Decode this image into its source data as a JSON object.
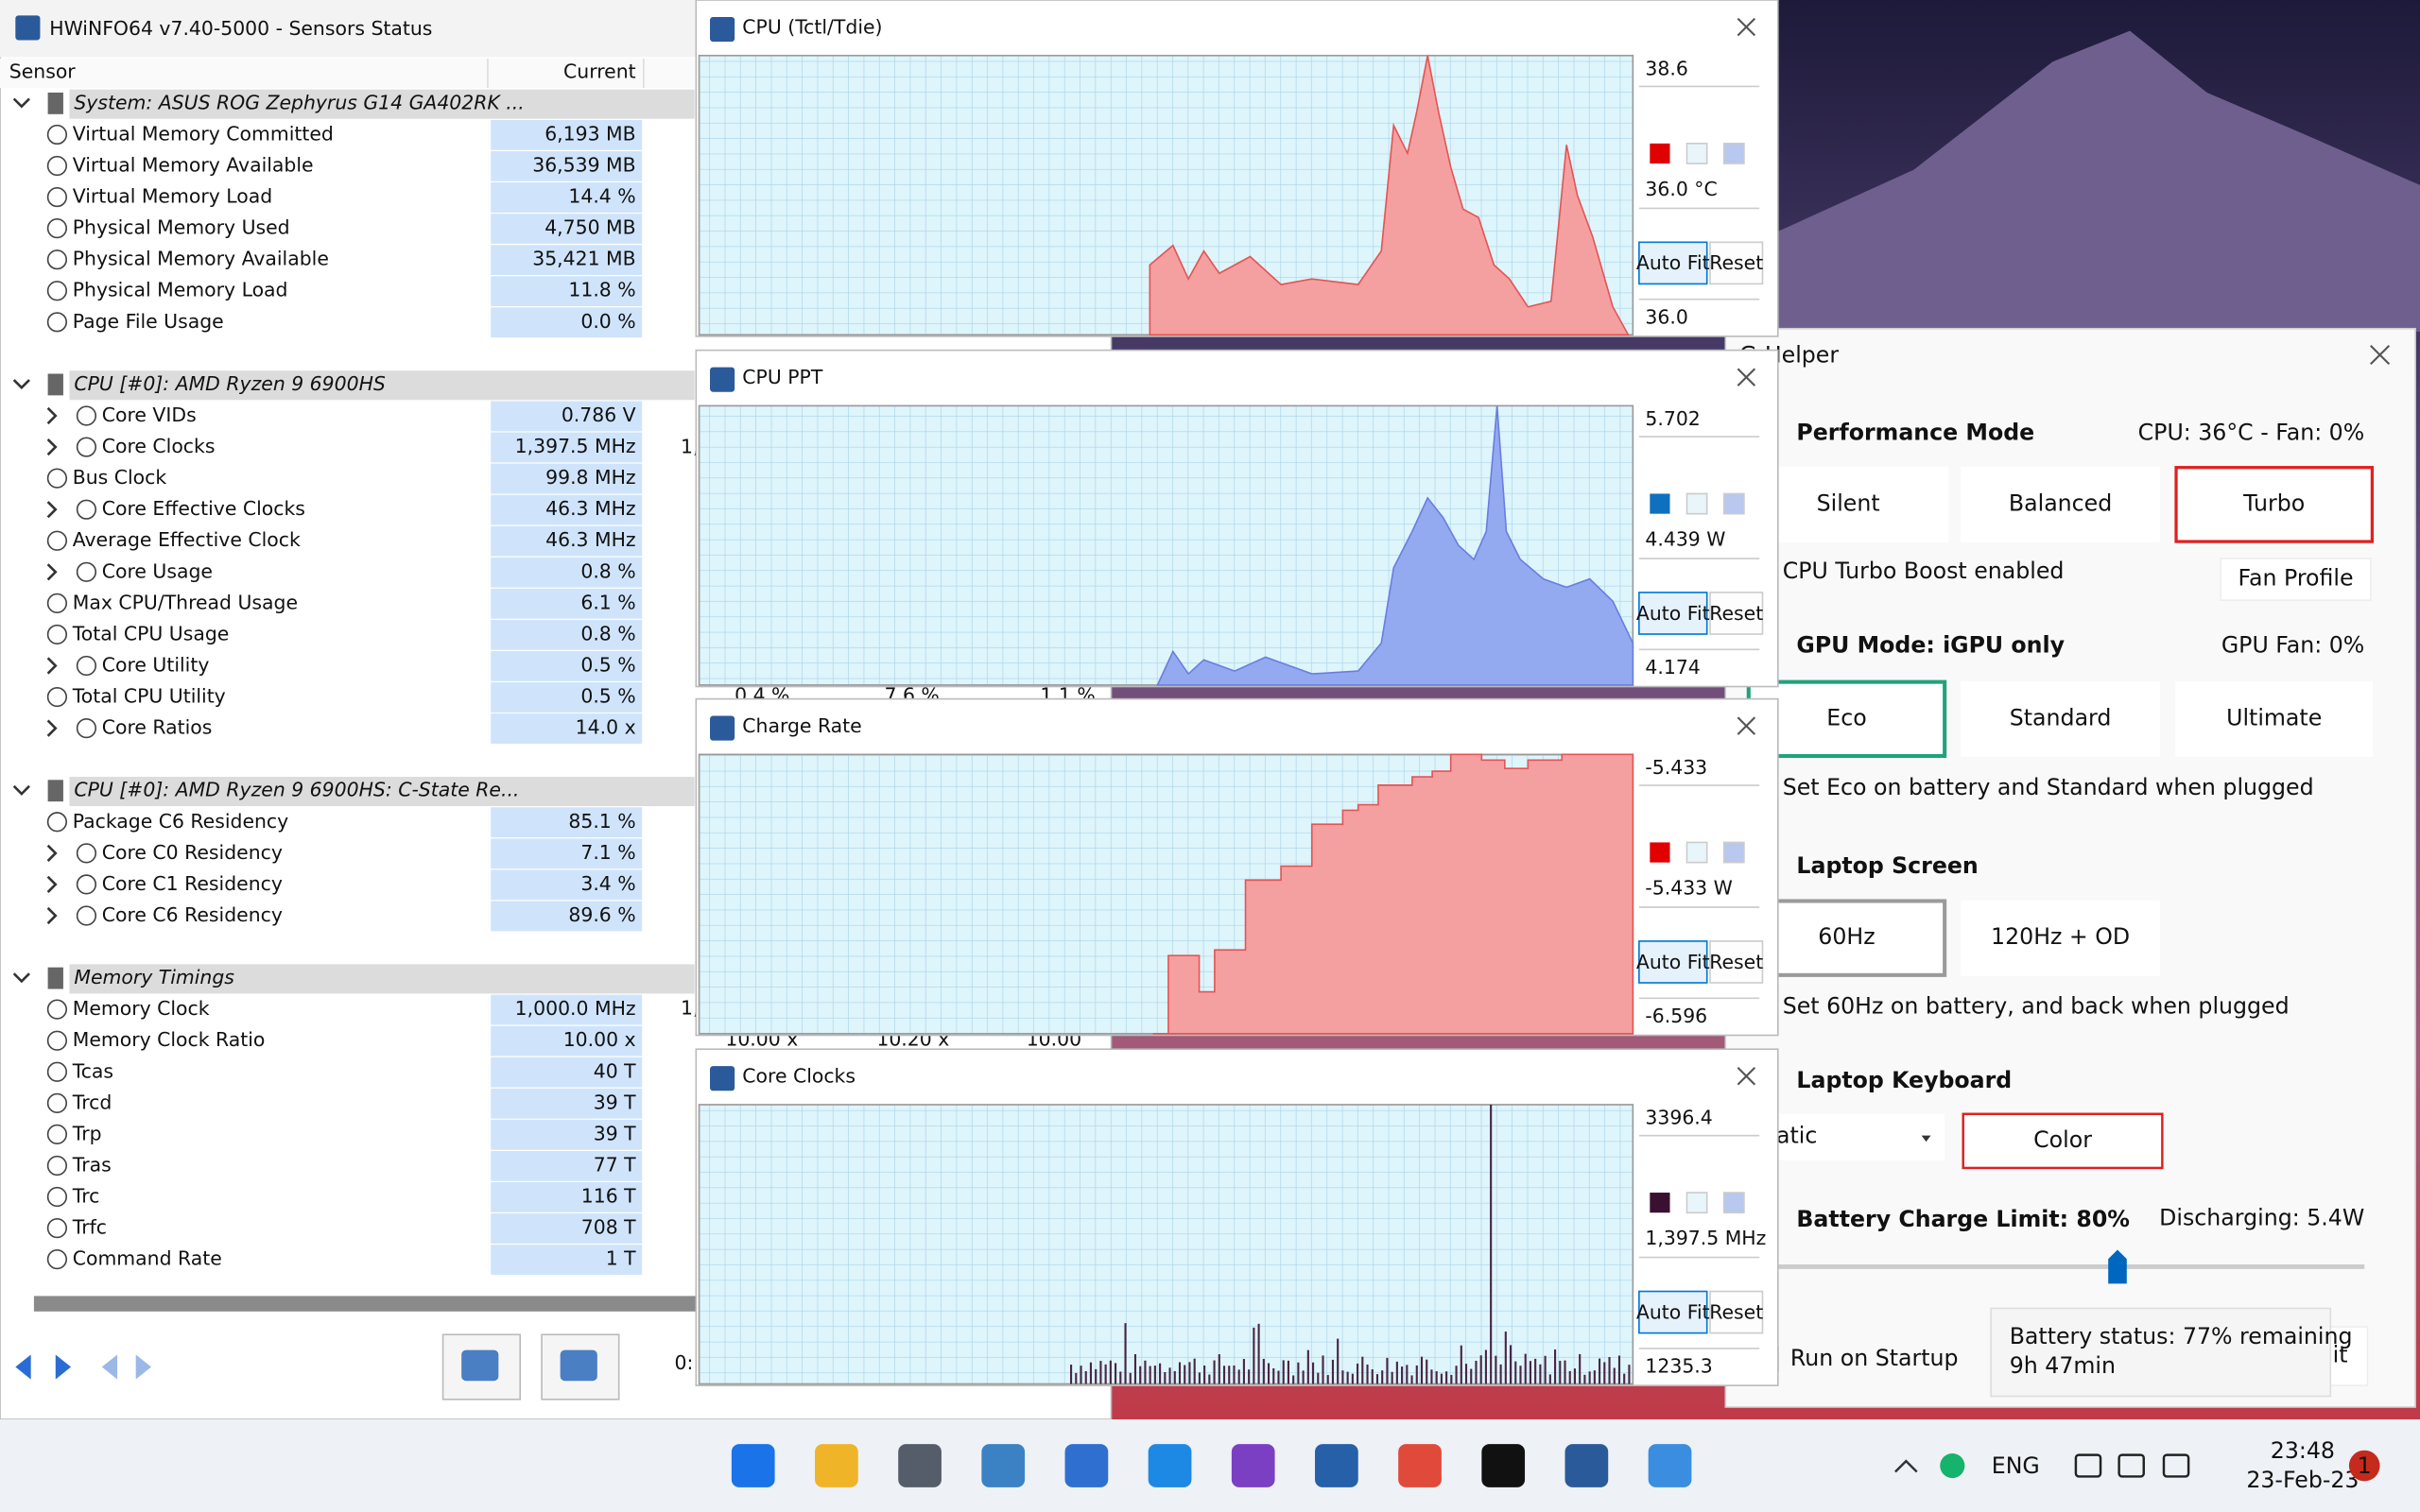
{
  "hwinfo": {
    "title": "HWiNFO64 v7.40-5000 - Sensors Status",
    "columns": [
      "Sensor",
      "Current"
    ],
    "groups": [
      {
        "name": "System: ASUS ROG Zephyrus G14 GA402RK ...",
        "rows": [
          [
            "Virtual Memory Committed",
            "6,193 MB"
          ],
          [
            "Virtual Memory Available",
            "36,539 MB"
          ],
          [
            "Virtual Memory Load",
            "14.4 %"
          ],
          [
            "Physical Memory Used",
            "4,750 MB"
          ],
          [
            "Physical Memory Available",
            "35,421 MB"
          ],
          [
            "Physical Memory Load",
            "11.8 %"
          ],
          [
            "Page File Usage",
            "0.0 %"
          ]
        ]
      },
      {
        "name": "CPU [#0]: AMD Ryzen 9 6900HS",
        "rows": [
          [
            "Core VIDs",
            "0.786 V"
          ],
          [
            "Core Clocks",
            "1,397.5 MHz"
          ],
          [
            "Bus Clock",
            "99.8 MHz"
          ],
          [
            "Core Effective Clocks",
            "46.3 MHz"
          ],
          [
            "Average Effective Clock",
            "46.3 MHz"
          ],
          [
            "Core Usage",
            "0.8 %"
          ],
          [
            "Max CPU/Thread Usage",
            "6.1 %"
          ],
          [
            "Total CPU Usage",
            "0.8 %"
          ],
          [
            "Core Utility",
            "0.5 %"
          ],
          [
            "Total CPU Utility",
            "0.5 %"
          ],
          [
            "Core Ratios",
            "14.0 x"
          ]
        ]
      },
      {
        "name": "CPU [#0]: AMD Ryzen 9 6900HS: C-State Re...",
        "rows": [
          [
            "Package C6 Residency",
            "85.1 %"
          ],
          [
            "Core C0 Residency",
            "7.1 %"
          ],
          [
            "Core C1 Residency",
            "3.4 %"
          ],
          [
            "Core C6 Residency",
            "89.6 %"
          ]
        ]
      },
      {
        "name": "Memory Timings",
        "rows": [
          [
            "Memory Clock",
            "1,000.0 MHz"
          ],
          [
            "Memory Clock Ratio",
            "10.00 x"
          ],
          [
            "Tcas",
            "40 T"
          ],
          [
            "Trcd",
            "39 T"
          ],
          [
            "Trp",
            "39 T"
          ],
          [
            "Tras",
            "77 T"
          ],
          [
            "Trc",
            "116 T"
          ],
          [
            "Trfc",
            "708 T"
          ],
          [
            "Command Rate",
            "1 T"
          ]
        ]
      }
    ],
    "partial": [
      "1,",
      "1,",
      "0.4 %",
      "7.6 %",
      "1.1 %",
      "10.00 x",
      "10.20 x",
      "10.00",
      "0:"
    ]
  },
  "graph_buttons": [
    "Auto Fit",
    "Reset"
  ],
  "graphs": [
    {
      "title": "CPU (Tctl/Tdie)",
      "max": "38.6",
      "current": "36.0 °C",
      "min": "36.0"
    },
    {
      "title": "CPU PPT",
      "max": "5.702",
      "current": "4.439 W",
      "min": "4.174"
    },
    {
      "title": "Charge Rate",
      "max": "-5.433",
      "current": "-5.433 W",
      "min": "-6.596"
    },
    {
      "title": "Core Clocks",
      "max": "3396.4",
      "current": "1,397.5 MHz",
      "min": "1235.3"
    }
  ],
  "ghelper": {
    "title": "G-Helper",
    "performance": {
      "label": "Performance Mode",
      "status": "CPU: 36°C - Fan: 0%",
      "modes": [
        "Silent",
        "Balanced",
        "Turbo"
      ],
      "note": "CPU Turbo Boost enabled",
      "fan_button": "Fan Profile"
    },
    "gpu": {
      "label": "GPU Mode: iGPU only",
      "status": "GPU Fan: 0%",
      "modes": [
        "Eco",
        "Standard",
        "Ultimate"
      ],
      "note": "Set Eco on battery and Standard when plugged"
    },
    "screen": {
      "label": "Laptop Screen",
      "modes": [
        "60Hz",
        "120Hz + OD"
      ],
      "note": "Set 60Hz on battery, and back when plugged"
    },
    "keyboard": {
      "label": "Laptop Keyboard",
      "mode": "Static",
      "color_button": "Color"
    },
    "battery": {
      "label": "Battery Charge Limit: 80%",
      "status": "Discharging: 5.4W"
    },
    "startup": "Run on Startup",
    "quit": "Quit",
    "tooltip": [
      "Battery status: 77% remaining",
      "9h 47min"
    ]
  },
  "taskbar": {
    "language": "ENG",
    "time": "23:48",
    "date": "23-Feb-23",
    "badge": "1"
  }
}
